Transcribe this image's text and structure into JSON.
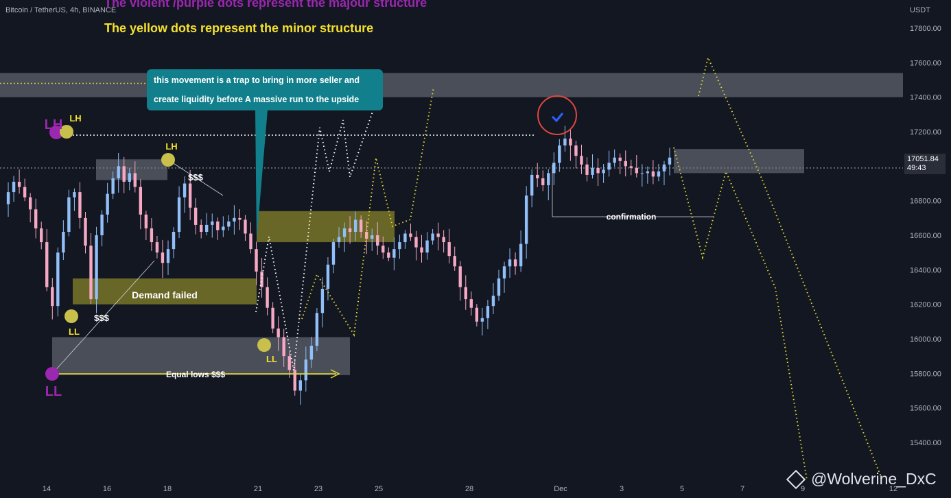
{
  "header": {
    "symbol_line": "Bitcoin / TetherUS, 4h, BINANCE",
    "note_purple": "The violent /purple dots represent the majour structure",
    "note_yellow": "The yellow dots represent the minor structure"
  },
  "callout": {
    "line1": "this movement is a trap to bring in more seller and",
    "line2": "create liquidity before A massive run to the upside"
  },
  "price_tag": {
    "price": "17051.84",
    "countdown": "49:43"
  },
  "watermark": "@Wolverine_DxC",
  "colors": {
    "background": "#131722",
    "up_candle": "#90bff9",
    "down_candle": "#f7a9c4",
    "major_dot": "#9c27b0",
    "minor_dot": "#c9c04b",
    "zone_gray": "#787b86",
    "zone_olive": "#8f8a2a",
    "callout": "#12808c"
  },
  "chart_data": {
    "type": "candlestick",
    "title": "Bitcoin / TetherUS, 4h, BINANCE",
    "y_unit": "USDT",
    "ylim": [
      15200,
      17900
    ],
    "yticks": [
      "17800.00",
      "17600.00",
      "17400.00",
      "17200.00",
      "17000.00",
      "16800.00",
      "16600.00",
      "16400.00",
      "16200.00",
      "16000.00",
      "15800.00",
      "15600.00",
      "15400.00"
    ],
    "xticks": [
      "14",
      "16",
      "18",
      "21",
      "23",
      "25",
      "28",
      "Dec",
      "3",
      "5",
      "7",
      "9",
      "12"
    ],
    "last_price": 17051.84,
    "close_path": [
      16780,
      16850,
      16910,
      16880,
      16820,
      16750,
      16640,
      16560,
      16300,
      16190,
      16500,
      16620,
      16820,
      16850,
      16700,
      16540,
      16230,
      16600,
      16720,
      16840,
      16930,
      17000,
      16910,
      16960,
      16880,
      16720,
      16640,
      16560,
      16500,
      16440,
      16520,
      16620,
      16820,
      16900,
      16760,
      16660,
      16620,
      16660,
      16680,
      16630,
      16650,
      16680,
      16700,
      16690,
      16610,
      16520,
      16390,
      16300,
      16180,
      16060,
      16010,
      15900,
      15820,
      15700,
      15760,
      15880,
      15960,
      16150,
      16290,
      16430,
      16560,
      16590,
      16640,
      16620,
      16690,
      16620,
      16580,
      16600,
      16540,
      16500,
      16470,
      16520,
      16560,
      16610,
      16590,
      16530,
      16500,
      16570,
      16610,
      16590,
      16560,
      16480,
      16420,
      16300,
      16230,
      16180,
      16100,
      16120,
      16190,
      16250,
      16350,
      16420,
      16460,
      16420,
      16550,
      16830,
      16950,
      16930,
      16890,
      16960,
      17020,
      17120,
      17160,
      17120,
      17060,
      17010,
      16950,
      16990,
      16960,
      16980,
      17020,
      17050,
      17030,
      17000,
      16990,
      16960,
      16960,
      16970,
      16940,
      16970,
      17010,
      17050
    ],
    "annotations": {
      "labels": [
        "LH",
        "LH",
        "LH",
        "LL",
        "LL",
        "LL",
        "$$$",
        "$$$",
        "Demand failed",
        "Equal lows  $$$",
        "confirmation"
      ],
      "horizontal_levels": [
        17480,
        17180,
        16990
      ],
      "zones": [
        {
          "kind": "gray",
          "from": 17400,
          "to": 17540
        },
        {
          "kind": "gray",
          "from": 16960,
          "to": 17100
        },
        {
          "kind": "olive",
          "from": 16560,
          "to": 16740
        },
        {
          "kind": "olive",
          "from": 16200,
          "to": 16350
        },
        {
          "kind": "gray",
          "from": 15790,
          "to": 16010
        },
        {
          "kind": "gray",
          "from": 16920,
          "to": 17040
        }
      ]
    }
  }
}
